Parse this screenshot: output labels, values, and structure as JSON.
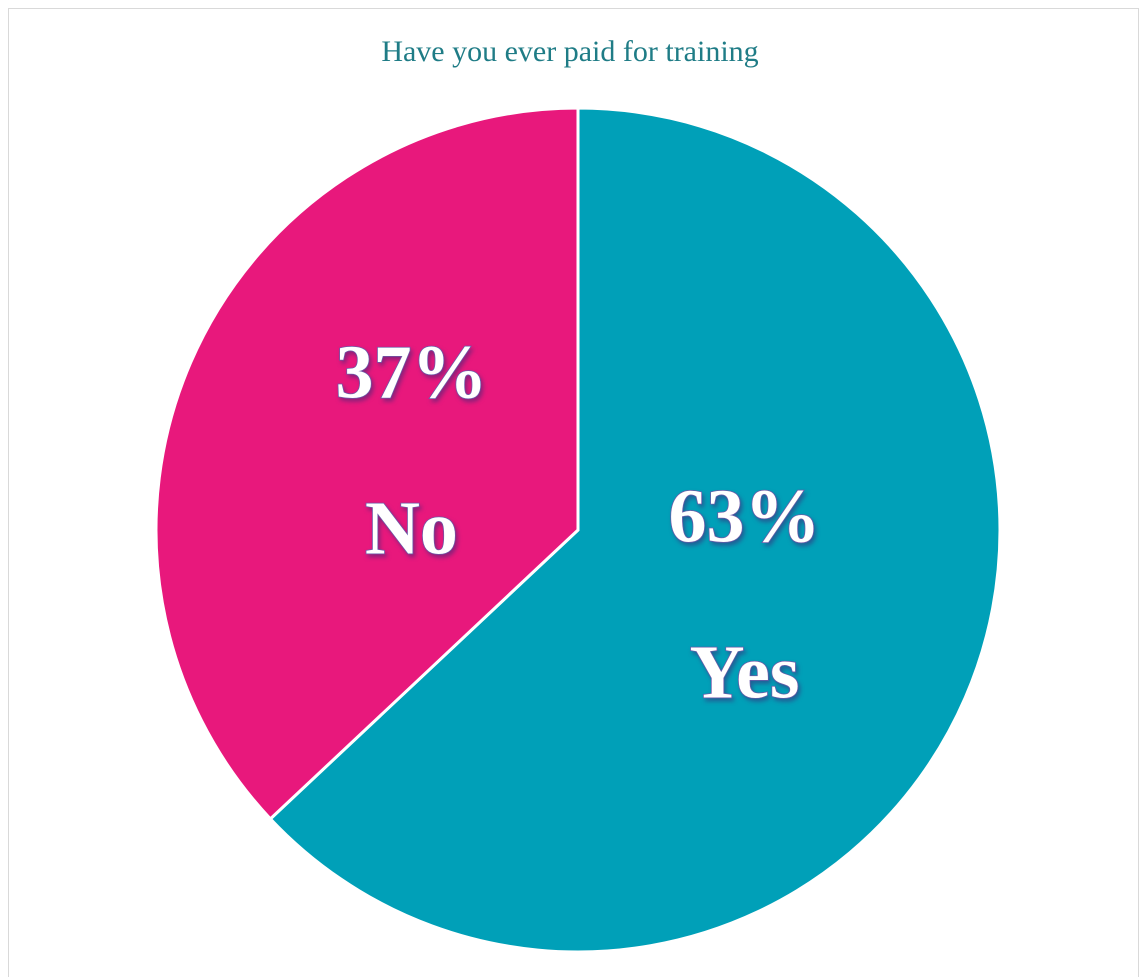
{
  "chart_data": {
    "type": "pie",
    "title": "Have you ever paid for training",
    "categories": [
      "Yes",
      "No"
    ],
    "values": [
      63,
      37
    ],
    "value_labels": [
      "63%",
      "37%"
    ],
    "colors": [
      "#00a0b8",
      "#e8187c"
    ]
  }
}
